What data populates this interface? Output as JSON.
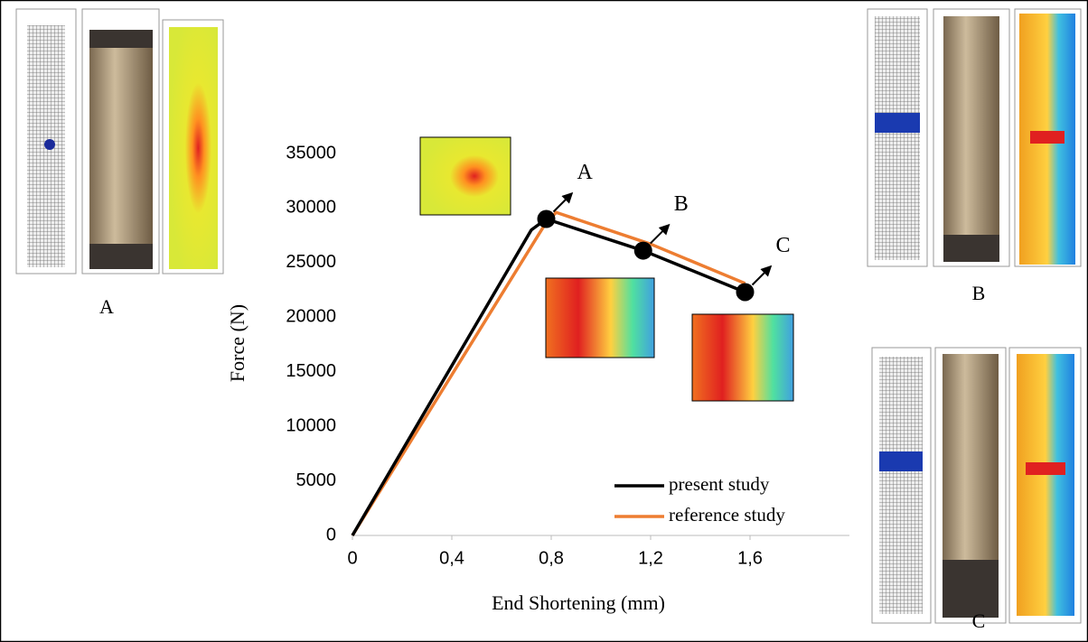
{
  "chart_data": {
    "type": "line",
    "xlabel": "End Shortening (mm)",
    "ylabel": "Force (N)",
    "xlim": [
      0,
      2
    ],
    "ylim": [
      0,
      35000
    ],
    "xticks": [
      0,
      {
        "value": 0.4,
        "label": "0,4"
      },
      {
        "value": 0.8,
        "label": "0,8"
      },
      {
        "value": 1.2,
        "label": "1,2"
      },
      {
        "value": 1.6,
        "label": "1,6"
      }
    ],
    "yticks": [
      0,
      5000,
      10000,
      15000,
      20000,
      25000,
      30000,
      35000
    ],
    "grid": false,
    "legend": "lower right",
    "series": [
      {
        "name": "present study",
        "color": "#000000",
        "x": [
          0,
          0.72,
          0.78,
          1.17,
          1.58
        ],
        "values": [
          0,
          28000,
          29000,
          26100,
          22300
        ]
      },
      {
        "name": "reference study",
        "color": "#ed7d31",
        "x": [
          0,
          0.78,
          0.82,
          1.2,
          1.58
        ],
        "values": [
          0,
          28700,
          29600,
          26700,
          23100
        ]
      }
    ],
    "points": [
      {
        "label": "A",
        "x": 0.78,
        "y": 29000
      },
      {
        "label": "B",
        "x": 1.17,
        "y": 26100
      },
      {
        "label": "C",
        "x": 1.58,
        "y": 22300
      }
    ]
  },
  "panel_labels": [
    "A",
    "B",
    "C"
  ]
}
